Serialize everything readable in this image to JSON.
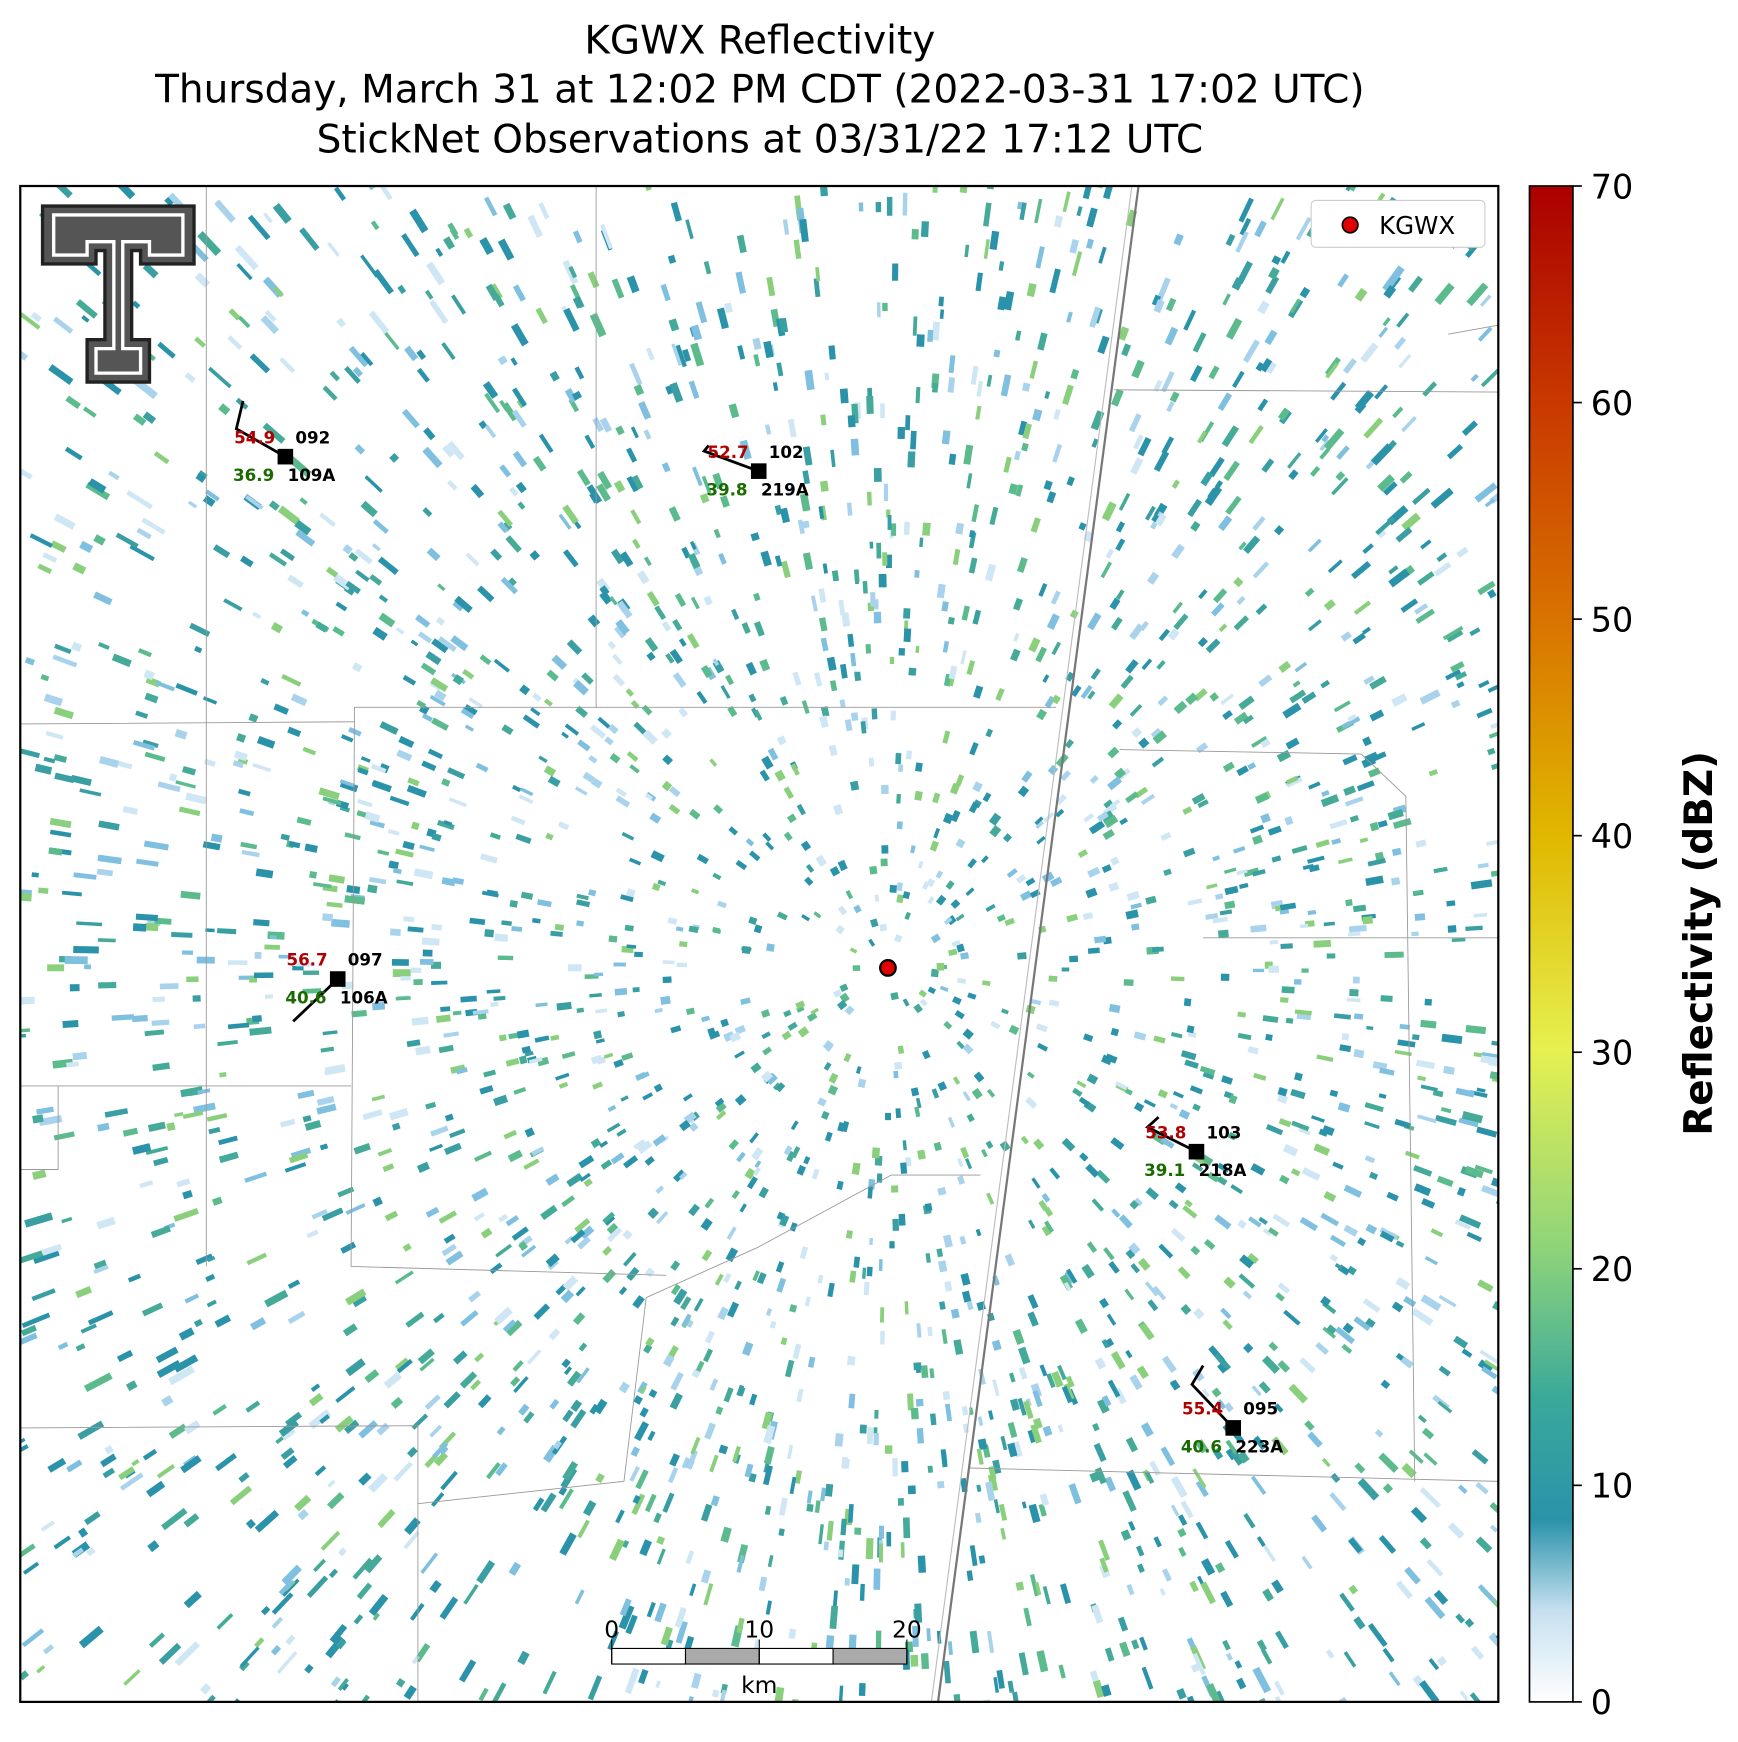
{
  "header": {
    "title_lines": [
      "KGWX Reflectivity",
      "Thursday, March 31 at 12:02 PM CDT (2022-03-31 17:02 UTC)",
      "StickNet Observations at 03/31/22 17:12 UTC"
    ]
  },
  "legend": {
    "label": "KGWX",
    "color": "#e00000"
  },
  "colorbar": {
    "label": "Reflectivity (dBZ)",
    "range": [
      0,
      70
    ],
    "ticks": [
      0,
      10,
      20,
      30,
      40,
      50,
      60,
      70
    ]
  },
  "scale_bar": {
    "ticks": [
      0,
      10,
      20
    ],
    "unit": "km"
  },
  "stations": [
    {
      "temp": "54.9",
      "dew": "36.9",
      "value": "092",
      "id": "109A"
    },
    {
      "temp": "52.7",
      "dew": "39.8",
      "value": "102",
      "id": "219A"
    },
    {
      "temp": "56.7",
      "dew": "40.6",
      "value": "097",
      "id": "106A"
    },
    {
      "temp": "53.8",
      "dew": "39.1",
      "value": "103",
      "id": "218A"
    },
    {
      "temp": "55.4",
      "dew": "40.6",
      "value": "095",
      "id": "223A"
    }
  ]
}
